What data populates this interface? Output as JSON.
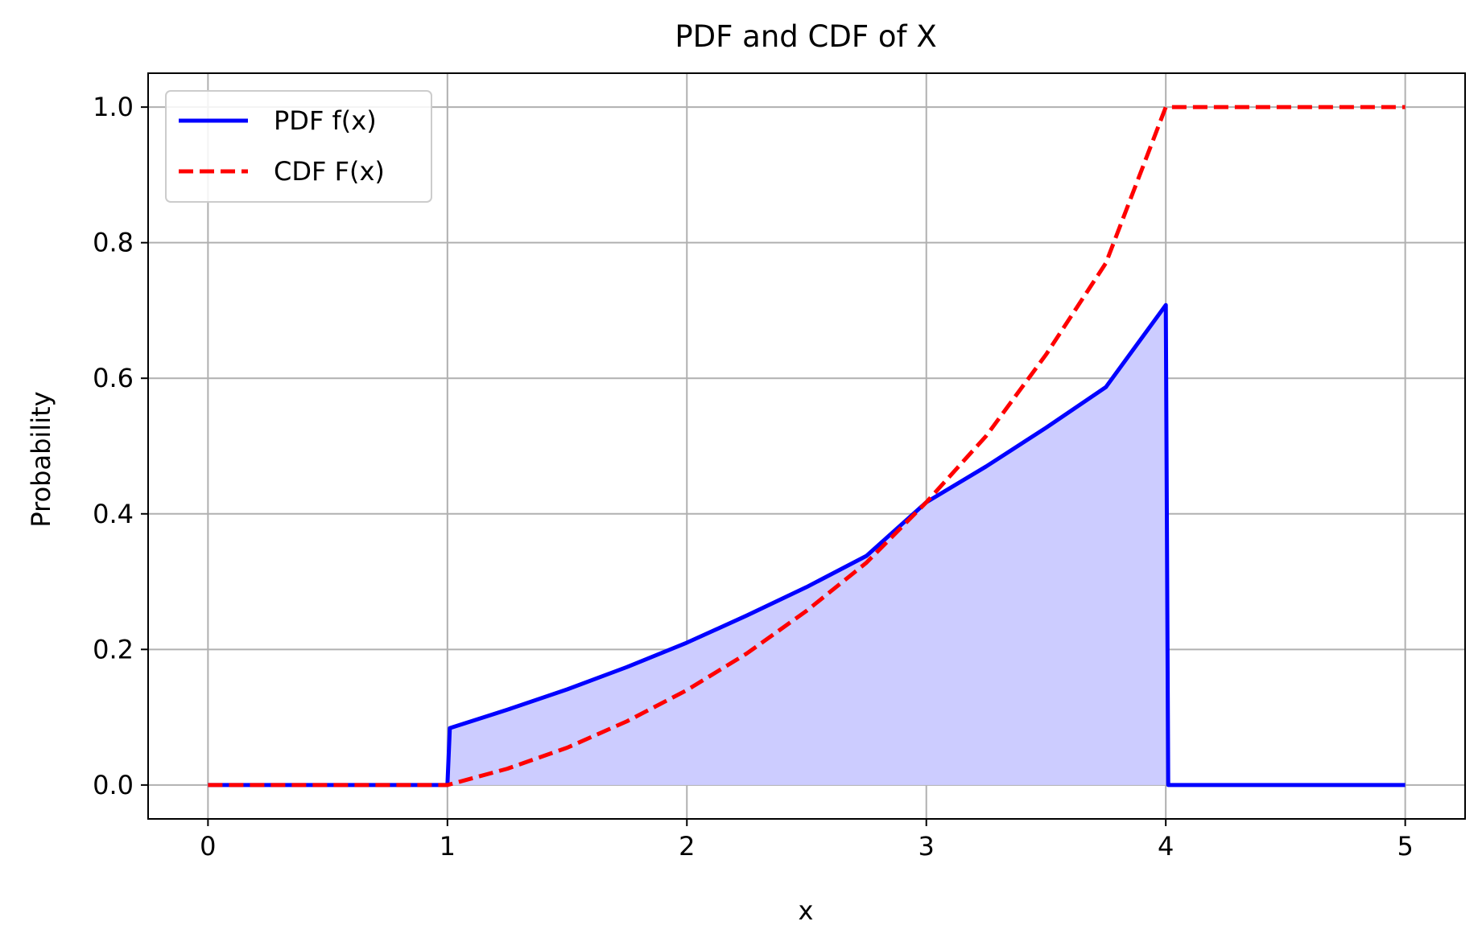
{
  "chart_data": {
    "type": "line",
    "title": "PDF and CDF of X",
    "xlabel": "x",
    "ylabel": "Probability",
    "xlim": [
      -0.25,
      5.25
    ],
    "ylim": [
      -0.05,
      1.05
    ],
    "xticks": [
      {
        "value": 0,
        "label": "0"
      },
      {
        "value": 1,
        "label": "1"
      },
      {
        "value": 2,
        "label": "2"
      },
      {
        "value": 3,
        "label": "3"
      },
      {
        "value": 4,
        "label": "4"
      },
      {
        "value": 5,
        "label": "5"
      }
    ],
    "yticks": [
      {
        "value": 0.0,
        "label": "0.0"
      },
      {
        "value": 0.2,
        "label": "0.2"
      },
      {
        "value": 0.4,
        "label": "0.4"
      },
      {
        "value": 0.6,
        "label": "0.6"
      },
      {
        "value": 0.8,
        "label": "0.8"
      },
      {
        "value": 1.0,
        "label": "1.0"
      }
    ],
    "grid": true,
    "legend_position": "top-left",
    "series": [
      {
        "name": "PDF f(x)",
        "style": "solid",
        "color": "#0000ff",
        "fill": "#ccccff",
        "x": [
          0,
          1,
          1.01,
          1.25,
          1.5,
          1.75,
          2.0,
          2.25,
          2.5,
          2.75,
          3.0,
          3.25,
          3.5,
          3.75,
          4.0,
          4.01,
          5.0
        ],
        "y": [
          0,
          0,
          0.084,
          0.111,
          0.141,
          0.174,
          0.21,
          0.25,
          0.292,
          0.338,
          0.417,
          0.47,
          0.527,
          0.587,
          0.708,
          0,
          0
        ]
      },
      {
        "name": "CDF F(x)",
        "style": "dashed",
        "color": "#ff0000",
        "x": [
          0,
          1,
          1.25,
          1.5,
          1.75,
          2.0,
          2.25,
          2.5,
          2.75,
          3.0,
          3.25,
          3.5,
          3.75,
          4.0,
          5.0
        ],
        "y": [
          0,
          0,
          0.024,
          0.055,
          0.094,
          0.14,
          0.194,
          0.257,
          0.328,
          0.417,
          0.515,
          0.635,
          0.77,
          1.0,
          1.0
        ]
      }
    ]
  }
}
